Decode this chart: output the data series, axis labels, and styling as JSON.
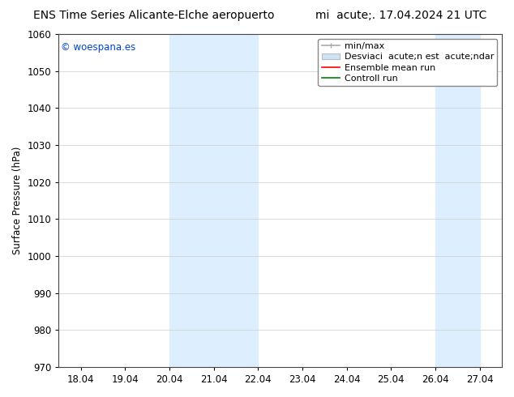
{
  "title_left_text": "ENS Time Series Alicante-Elche aeropuerto",
  "title_right_text": "mi  acute;. 17.04.2024 21 UTC",
  "ylabel": "Surface Pressure (hPa)",
  "ylim": [
    970,
    1060
  ],
  "yticks": [
    970,
    980,
    990,
    1000,
    1010,
    1020,
    1030,
    1040,
    1050,
    1060
  ],
  "xtick_labels": [
    "18.04",
    "19.04",
    "20.04",
    "21.04",
    "22.04",
    "23.04",
    "24.04",
    "25.04",
    "26.04",
    "27.04"
  ],
  "xtick_positions": [
    18.04,
    19.04,
    20.04,
    21.04,
    22.04,
    23.04,
    24.04,
    25.04,
    26.04,
    27.04
  ],
  "xlim_start": 17.54,
  "xlim_end": 27.54,
  "shaded_bands": [
    {
      "x_start": 20.04,
      "x_end": 22.04
    },
    {
      "x_start": 26.04,
      "x_end": 27.04
    }
  ],
  "shaded_color": "#ddeeff",
  "copyright_text": "© woespana.es",
  "copyright_color": "#0044cc",
  "legend_label_minmax": "min/max",
  "legend_label_desv": "Desviaci  acute;n est  acute;ndar",
  "legend_label_ens": "Ensemble mean run",
  "legend_label_ctrl": "Controll run",
  "background_color": "#ffffff",
  "grid_color": "#cccccc",
  "font_size": 8.5,
  "title_font_size": 10
}
